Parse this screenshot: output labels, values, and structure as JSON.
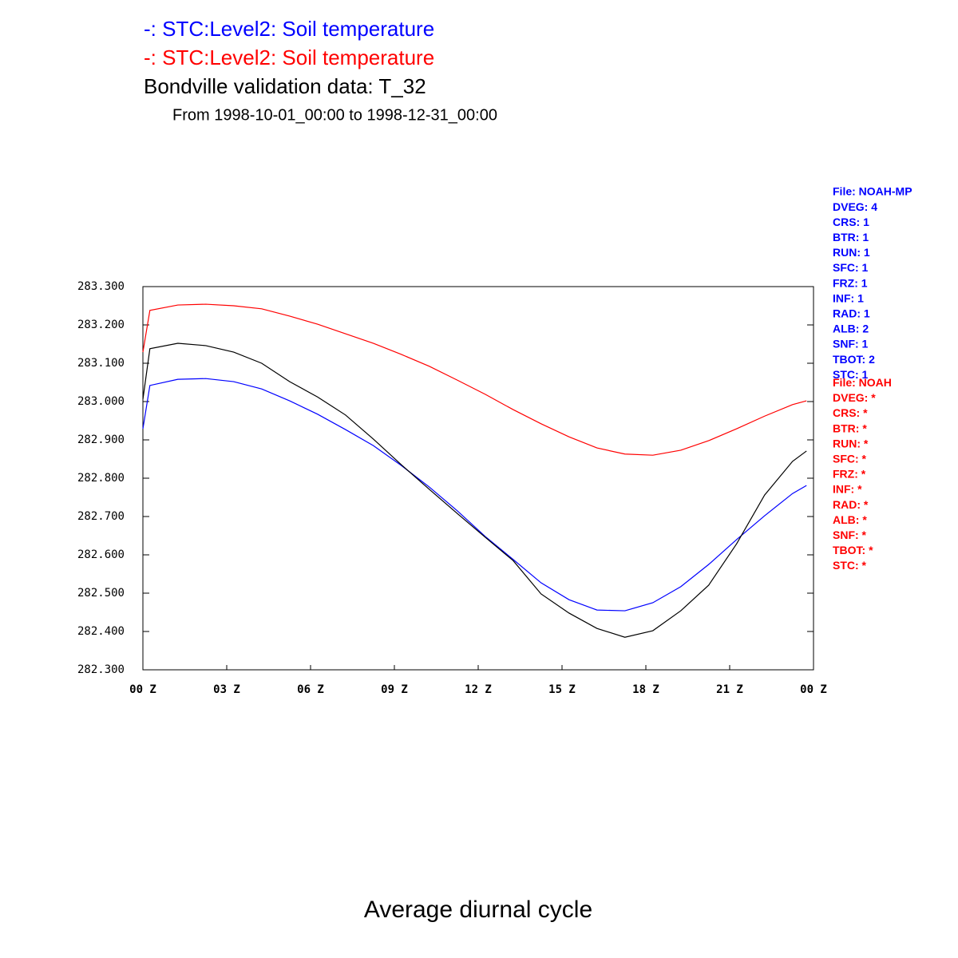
{
  "chart_data": {
    "type": "line",
    "title": "Average diurnal cycle",
    "subtitle": "From 1998-10-01_00:00 to 1998-12-31_00:00",
    "x": [
      0,
      0.25,
      1.25,
      2.25,
      3.25,
      4.25,
      5.25,
      6.25,
      7.25,
      8.25,
      9.25,
      10.25,
      11.25,
      12.25,
      13.25,
      14.25,
      15.25,
      16.25,
      17.25,
      18.25,
      19.25,
      20.25,
      21.25,
      22.25,
      23.25,
      23.75
    ],
    "series": [
      {
        "name": "-: STC:Level2: Soil temperature",
        "color": "#0000ff",
        "values": [
          282.929,
          283.042,
          283.058,
          283.06,
          283.052,
          283.033,
          283.002,
          282.967,
          282.927,
          282.885,
          282.833,
          282.777,
          282.715,
          282.648,
          282.588,
          282.527,
          282.483,
          282.456,
          282.454,
          282.475,
          282.517,
          282.575,
          282.64,
          282.702,
          282.76,
          282.781
        ]
      },
      {
        "name": "-: STC:Level2: Soil temperature",
        "color": "#ff0000",
        "values": [
          283.129,
          283.238,
          283.252,
          283.254,
          283.25,
          283.242,
          283.223,
          283.202,
          283.177,
          283.152,
          283.123,
          283.092,
          283.056,
          283.019,
          282.979,
          282.942,
          282.908,
          282.879,
          282.863,
          282.86,
          282.873,
          282.898,
          282.929,
          282.962,
          282.992,
          283.002
        ]
      },
      {
        "name": "Bondville validation data: T_32",
        "color": "#000000",
        "values": [
          283.006,
          283.138,
          283.152,
          283.146,
          283.129,
          283.1,
          283.052,
          283.012,
          282.965,
          282.902,
          282.835,
          282.771,
          282.708,
          282.646,
          282.585,
          282.498,
          282.448,
          282.408,
          282.385,
          282.402,
          282.454,
          282.521,
          282.629,
          282.756,
          282.844,
          282.871
        ]
      }
    ],
    "xlim": [
      0,
      24
    ],
    "xticks": [
      {
        "value": 0,
        "label": "00 Z"
      },
      {
        "value": 3,
        "label": "03 Z"
      },
      {
        "value": 6,
        "label": "06 Z"
      },
      {
        "value": 9,
        "label": "09 Z"
      },
      {
        "value": 12,
        "label": "12 Z"
      },
      {
        "value": 15,
        "label": "15 Z"
      },
      {
        "value": 18,
        "label": "18 Z"
      },
      {
        "value": 21,
        "label": "21 Z"
      },
      {
        "value": 24,
        "label": "00 Z"
      }
    ],
    "ylim": [
      282.3,
      283.3
    ],
    "yticks": [
      {
        "value": 282.3,
        "label": "282.300"
      },
      {
        "value": 282.4,
        "label": "282.400"
      },
      {
        "value": 282.5,
        "label": "282.500"
      },
      {
        "value": 282.6,
        "label": "282.600"
      },
      {
        "value": 282.7,
        "label": "282.700"
      },
      {
        "value": 282.8,
        "label": "282.800"
      },
      {
        "value": 282.9,
        "label": "282.900"
      },
      {
        "value": 283.0,
        "label": "283.000"
      },
      {
        "value": 283.1,
        "label": "283.100"
      },
      {
        "value": 283.2,
        "label": "283.200"
      },
      {
        "value": 283.3,
        "label": "283.300"
      }
    ],
    "grid": false,
    "file_info": [
      {
        "color": "#0000ff",
        "lines": [
          "File: NOAH-MP",
          "DVEG: 4",
          "CRS: 1",
          "BTR: 1",
          "RUN: 1",
          "SFC: 1",
          "FRZ: 1",
          "INF: 1",
          "RAD: 1",
          "ALB: 2",
          "SNF: 1",
          "TBOT: 2",
          "STC: 1"
        ]
      },
      {
        "color": "#ff0000",
        "lines": [
          "File: NOAH",
          "DVEG: *",
          "CRS: *",
          "BTR: *",
          "RUN: *",
          "SFC: *",
          "FRZ: *",
          "INF: *",
          "RAD: *",
          "ALB: *",
          "SNF: *",
          "TBOT: *",
          "STC: *"
        ]
      }
    ]
  }
}
